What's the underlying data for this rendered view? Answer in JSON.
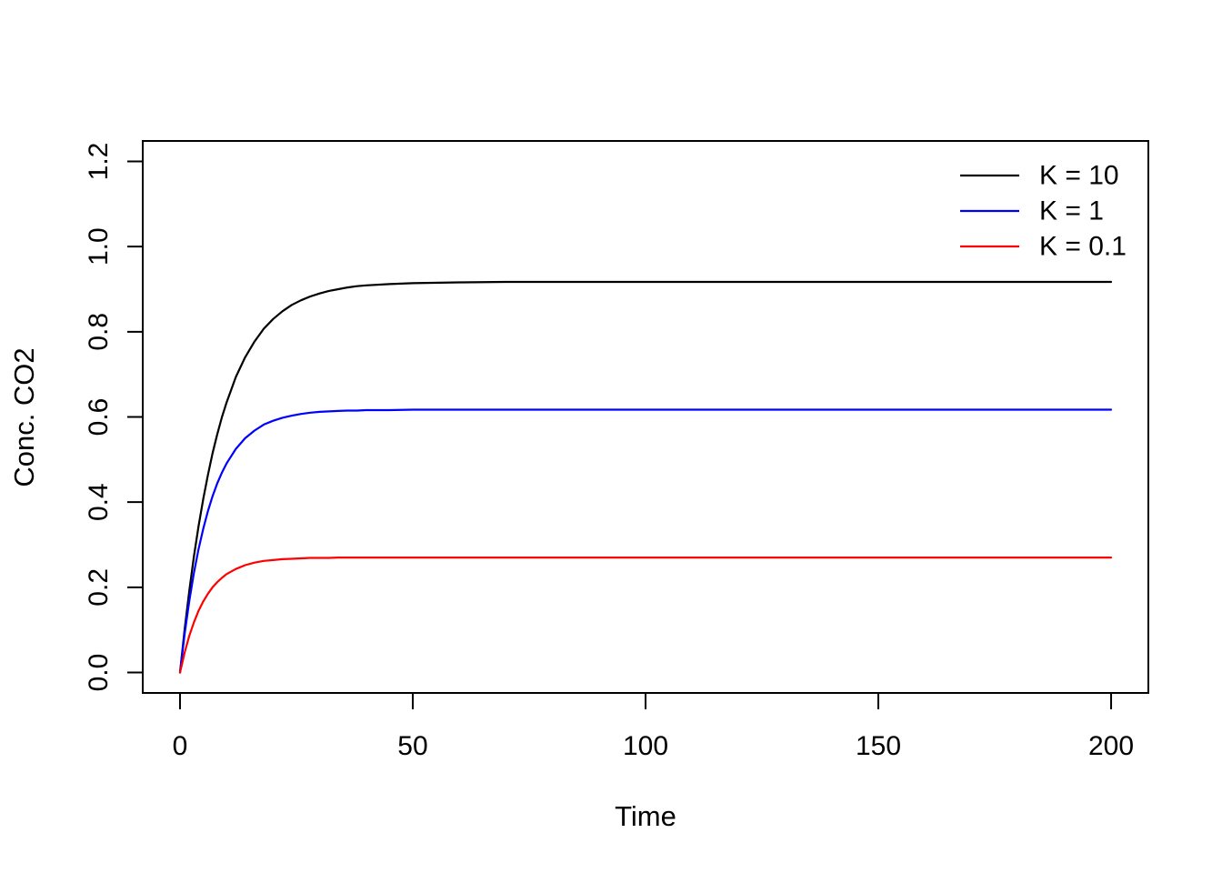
{
  "figure": {
    "background": "#ffffff",
    "frame_color": "#000000"
  },
  "chart_data": {
    "type": "line",
    "title": "",
    "xlabel": "Time",
    "ylabel": "Conc. CO2",
    "xlim": [
      -8,
      208
    ],
    "ylim": [
      -0.048,
      1.248
    ],
    "x_ticks": [
      0,
      50,
      100,
      150,
      200
    ],
    "y_ticks": [
      "0.0",
      "0.2",
      "0.4",
      "0.6",
      "0.8",
      "1.0",
      "1.2"
    ],
    "grid": false,
    "legend_position": "topright",
    "x": [
      0,
      1,
      2,
      3,
      4,
      5,
      6,
      7,
      8,
      9,
      10,
      12,
      14,
      16,
      18,
      20,
      22,
      24,
      26,
      28,
      30,
      32,
      34,
      36,
      38,
      40,
      45,
      50,
      60,
      70,
      80,
      90,
      100,
      110,
      120,
      130,
      140,
      150,
      160,
      170,
      180,
      190,
      200
    ],
    "series": [
      {
        "name": "K = 10",
        "color": "#000000",
        "asymptote": 0.92,
        "values": [
          0,
          0.102,
          0.192,
          0.273,
          0.344,
          0.408,
          0.464,
          0.515,
          0.559,
          0.599,
          0.634,
          0.694,
          0.74,
          0.777,
          0.807,
          0.83,
          0.848,
          0.863,
          0.874,
          0.883,
          0.89,
          0.896,
          0.9,
          0.904,
          0.907,
          0.909,
          0.912,
          0.914,
          0.916,
          0.917,
          0.917,
          0.917,
          0.917,
          0.917,
          0.917,
          0.917,
          0.917,
          0.917,
          0.917,
          0.917,
          0.917,
          0.917,
          0.917
        ]
      },
      {
        "name": "K = 1",
        "color": "#0000ff",
        "asymptote": 0.62,
        "values": [
          0,
          0.091,
          0.168,
          0.234,
          0.29,
          0.338,
          0.379,
          0.414,
          0.444,
          0.469,
          0.491,
          0.525,
          0.55,
          0.568,
          0.582,
          0.591,
          0.598,
          0.603,
          0.607,
          0.61,
          0.612,
          0.613,
          0.614,
          0.615,
          0.615,
          0.616,
          0.616,
          0.617,
          0.617,
          0.617,
          0.617,
          0.617,
          0.617,
          0.617,
          0.617,
          0.617,
          0.617,
          0.617,
          0.617,
          0.617,
          0.617,
          0.617,
          0.617
        ]
      },
      {
        "name": "K = 0.1",
        "color": "#ff0000",
        "asymptote": 0.27,
        "values": [
          0,
          0.047,
          0.086,
          0.118,
          0.145,
          0.167,
          0.185,
          0.2,
          0.212,
          0.222,
          0.231,
          0.243,
          0.252,
          0.258,
          0.262,
          0.264,
          0.266,
          0.267,
          0.268,
          0.269,
          0.269,
          0.269,
          0.27,
          0.27,
          0.27,
          0.27,
          0.27,
          0.27,
          0.27,
          0.27,
          0.27,
          0.27,
          0.27,
          0.27,
          0.27,
          0.27,
          0.27,
          0.27,
          0.27,
          0.27,
          0.27,
          0.27,
          0.27
        ]
      }
    ]
  }
}
